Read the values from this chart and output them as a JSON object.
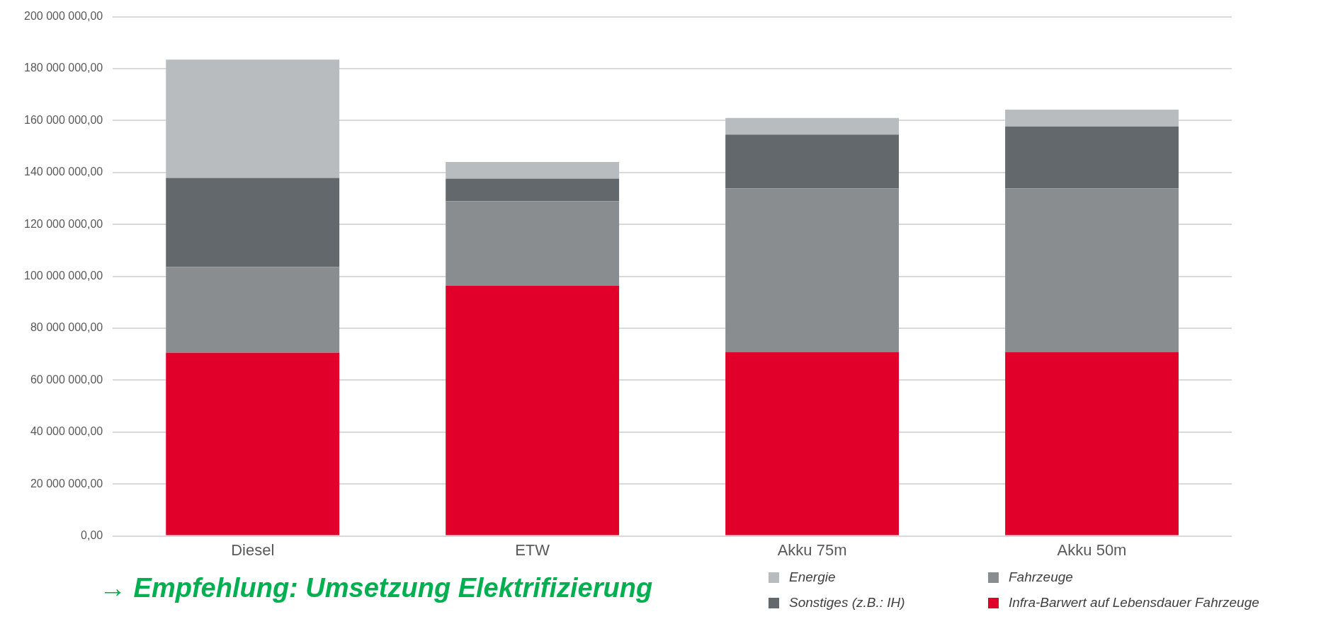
{
  "chart_data": {
    "type": "bar",
    "stacked": true,
    "categories": [
      "Diesel",
      "ETW",
      "Akku 75m",
      "Akku 50m"
    ],
    "series": [
      {
        "name": "Infra-Barwert auf Lebensdauer Fahrzeuge",
        "color": "#e1002a",
        "values": [
          70600000,
          96400000,
          70900000,
          70900000
        ]
      },
      {
        "name": "Fahrzeuge",
        "color": "#898d90",
        "values": [
          33000000,
          32500000,
          62900000,
          63000000
        ]
      },
      {
        "name": "Sonstiges (z.B.: IH)",
        "color": "#63686c",
        "values": [
          34300000,
          8700000,
          20800000,
          23800000
        ]
      },
      {
        "name": "Energie",
        "color": "#b9bcbf",
        "values": [
          45600000,
          6400000,
          6400000,
          6500000
        ]
      }
    ],
    "ylim": [
      0,
      200000000
    ],
    "yticks": [
      {
        "value": 0,
        "label": "0,00"
      },
      {
        "value": 20000000,
        "label": "20 000 000,00"
      },
      {
        "value": 40000000,
        "label": "40 000 000,00"
      },
      {
        "value": 60000000,
        "label": "60 000 000,00"
      },
      {
        "value": 80000000,
        "label": "80 000 000,00"
      },
      {
        "value": 100000000,
        "label": "100 000 000,00"
      },
      {
        "value": 120000000,
        "label": "120 000 000,00"
      },
      {
        "value": 140000000,
        "label": "140 000 000,00"
      },
      {
        "value": 160000000,
        "label": "160 000 000,00"
      },
      {
        "value": 180000000,
        "label": "180 000 000,00"
      },
      {
        "value": 200000000,
        "label": "200 000 000,00"
      }
    ],
    "grid": "y",
    "legend": "bottom right",
    "annotations": [
      "→ Empfehlung: Umsetzung Elektrifizierung"
    ]
  }
}
